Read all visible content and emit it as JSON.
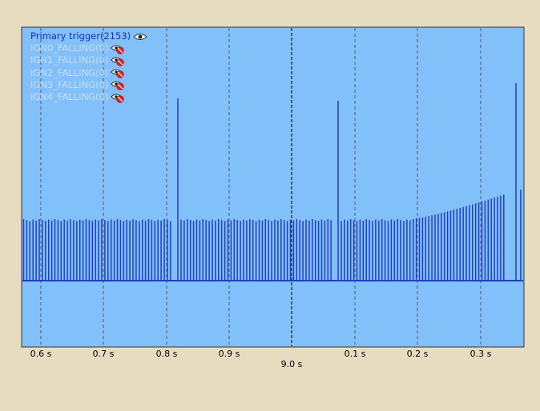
{
  "legend": {
    "items": [
      {
        "label": "Primary trigger(2153)",
        "visible": true,
        "icon": "eye-icon"
      },
      {
        "label": "IGN0_FALLING(0)",
        "visible": false,
        "icon": "eye-hidden-icon"
      },
      {
        "label": "IGN1_FALLING(0)",
        "visible": false,
        "icon": "eye-hidden-icon"
      },
      {
        "label": "IGN2_FALLING(0)",
        "visible": false,
        "icon": "eye-hidden-icon"
      },
      {
        "label": "IGN3_FALLING(0)",
        "visible": false,
        "icon": "eye-hidden-icon"
      },
      {
        "label": "IGN4_FALLING(0)",
        "visible": false,
        "icon": "eye-hidden-icon"
      }
    ]
  },
  "axis": {
    "tick_labels": [
      "0.6 s",
      "0.7 s",
      "0.8 s",
      "0.9 s",
      "0.1 s",
      "0.2 s",
      "0.3 s"
    ],
    "second_label": "9.0 s"
  },
  "colors": {
    "page_bg": "#e8dcc0",
    "plot_bg": "#82c0fa",
    "signal": "#1f3fbf",
    "grid": "#444444",
    "border": "#333333"
  }
}
